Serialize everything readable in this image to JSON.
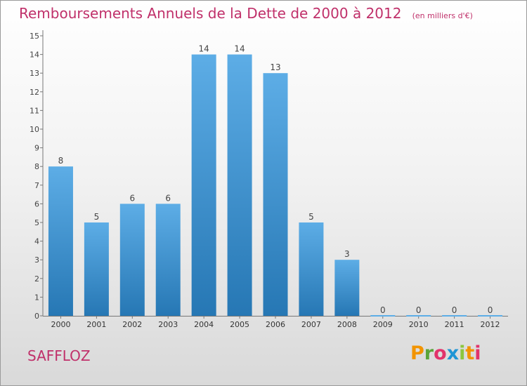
{
  "header": {
    "title": "Remboursements Annuels de la Dette de 2000 à 2012",
    "unit": "(en milliers d'€)"
  },
  "footer": {
    "commune": "SAFFLOZ",
    "brand": "Proxiti",
    "brand_colors": [
      "#f29400",
      "#5aa43a",
      "#e2336b",
      "#1f95d5",
      "#8cc63e",
      "#f29400",
      "#e2336b"
    ]
  },
  "chart_data": {
    "type": "bar",
    "categories": [
      "2000",
      "2001",
      "2002",
      "2003",
      "2004",
      "2005",
      "2006",
      "2007",
      "2008",
      "2009",
      "2010",
      "2011",
      "2012"
    ],
    "values": [
      8,
      5,
      6,
      6,
      14,
      14,
      13,
      5,
      3,
      0,
      0,
      0,
      0
    ],
    "title": "Remboursements Annuels de la Dette de 2000 à 2012",
    "ylim": [
      0,
      15
    ],
    "yticks": [
      0,
      1,
      2,
      3,
      4,
      5,
      6,
      7,
      8,
      9,
      10,
      11,
      12,
      13,
      14,
      15
    ],
    "grid": false,
    "bar_color_light": "#5dade6",
    "bar_color_dark": "#2677b4"
  }
}
